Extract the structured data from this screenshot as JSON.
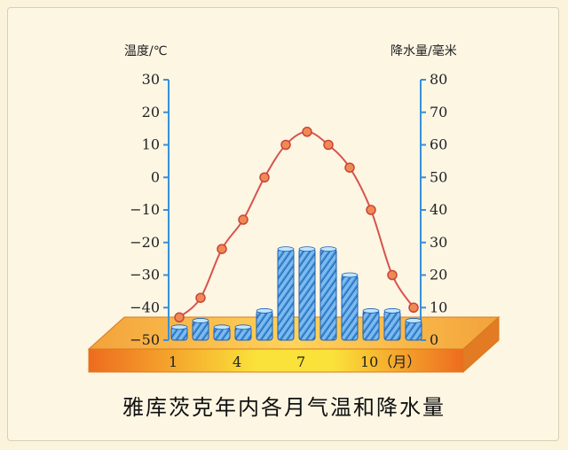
{
  "chart_data": {
    "type": "bar+line",
    "title": "雅库茨克年内各月气温和降水量",
    "months": [
      1,
      2,
      3,
      4,
      5,
      6,
      7,
      8,
      9,
      10,
      11,
      12
    ],
    "x_tick_labels": [
      {
        "month": 1,
        "text": "1"
      },
      {
        "month": 4,
        "text": "4"
      },
      {
        "month": 7,
        "text": "7"
      },
      {
        "month": 10,
        "text": "10（月）"
      }
    ],
    "temperature": {
      "axis_label": "温度/℃",
      "ylim": [
        -50,
        30
      ],
      "ticks": [
        30,
        20,
        10,
        0,
        -10,
        -20,
        -30,
        -40,
        -50
      ],
      "tick_labels": [
        "30",
        "20",
        "10",
        "0",
        "−10",
        "−20",
        "−30",
        "−40",
        "−50"
      ],
      "values": [
        -43,
        -37,
        -22,
        -13,
        0,
        10,
        14,
        10,
        3,
        -10,
        -30,
        -40
      ],
      "color": "#d9534f"
    },
    "precipitation": {
      "axis_label": "降水量/毫米",
      "ylim": [
        0,
        80
      ],
      "ticks": [
        80,
        70,
        60,
        50,
        40,
        30,
        20,
        10,
        0
      ],
      "tick_labels": [
        "80",
        "70",
        "60",
        "50",
        "40",
        "30",
        "20",
        "10",
        "0"
      ],
      "values": [
        4,
        6,
        4,
        4,
        9,
        28,
        28,
        28,
        20,
        9,
        9,
        6
      ],
      "color": "#3a8fd9"
    }
  }
}
